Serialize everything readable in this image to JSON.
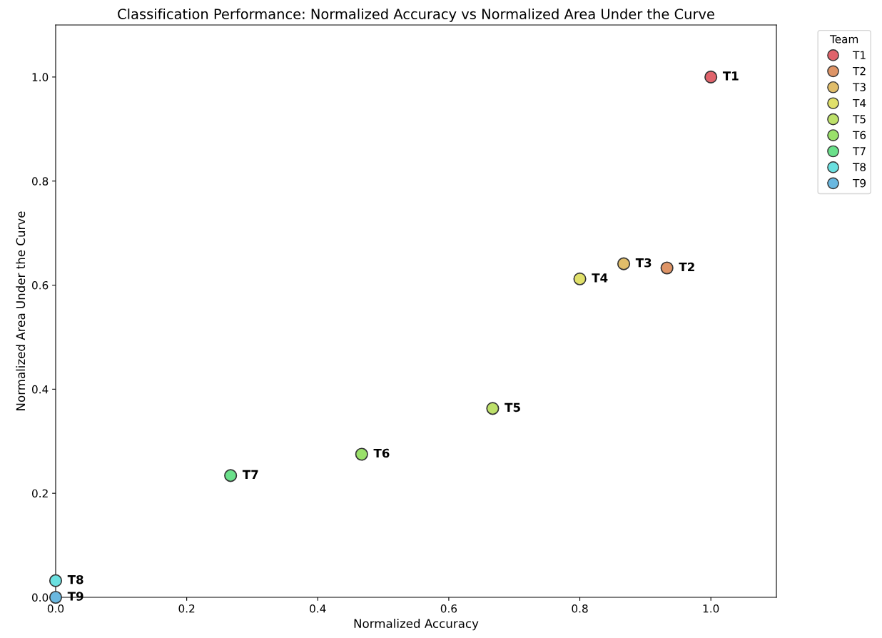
{
  "chart_data": {
    "type": "scatter",
    "title": "Classification Performance: Normalized Accuracy vs Normalized Area Under the Curve",
    "xlabel": "Normalized Accuracy",
    "ylabel": "Normalized Area Under the Curve",
    "legend_title": "Team",
    "legend": "top right",
    "marker": "circle",
    "grid": false,
    "xlim": [
      0,
      1.1
    ],
    "ylim": [
      0,
      1.1
    ],
    "xticks": [
      {
        "value": 0,
        "label": "0.0"
      },
      0.2,
      0.4,
      0.6,
      0.8,
      {
        "value": 1,
        "label": "1.0"
      }
    ],
    "yticks": [
      {
        "value": 0,
        "label": "0.0"
      },
      0.2,
      0.4,
      0.6,
      0.8,
      {
        "value": 1,
        "label": "1.0"
      }
    ],
    "series": [
      {
        "name": "T1",
        "color": "#e0636b",
        "x": [
          1.0
        ],
        "values": [
          1.0
        ]
      },
      {
        "name": "T2",
        "color": "#de9466",
        "x": [
          0.933
        ],
        "values": [
          0.633
        ]
      },
      {
        "name": "T3",
        "color": "#e0bd6a",
        "x": [
          0.867
        ],
        "values": [
          0.641
        ]
      },
      {
        "name": "T4",
        "color": "#e0e06a",
        "x": [
          0.8
        ],
        "values": [
          0.612
        ]
      },
      {
        "name": "T5",
        "color": "#bde06a",
        "x": [
          0.667
        ],
        "values": [
          0.363
        ]
      },
      {
        "name": "T6",
        "color": "#9ae06a",
        "x": [
          0.467
        ],
        "values": [
          0.275
        ]
      },
      {
        "name": "T7",
        "color": "#6ae08a",
        "x": [
          0.267
        ],
        "values": [
          0.234
        ]
      },
      {
        "name": "T8",
        "color": "#6ae0e0",
        "x": [
          0.0
        ],
        "values": [
          0.032
        ]
      },
      {
        "name": "T9",
        "color": "#6ab8e0",
        "x": [
          0.0
        ],
        "values": [
          0.0
        ]
      }
    ]
  }
}
